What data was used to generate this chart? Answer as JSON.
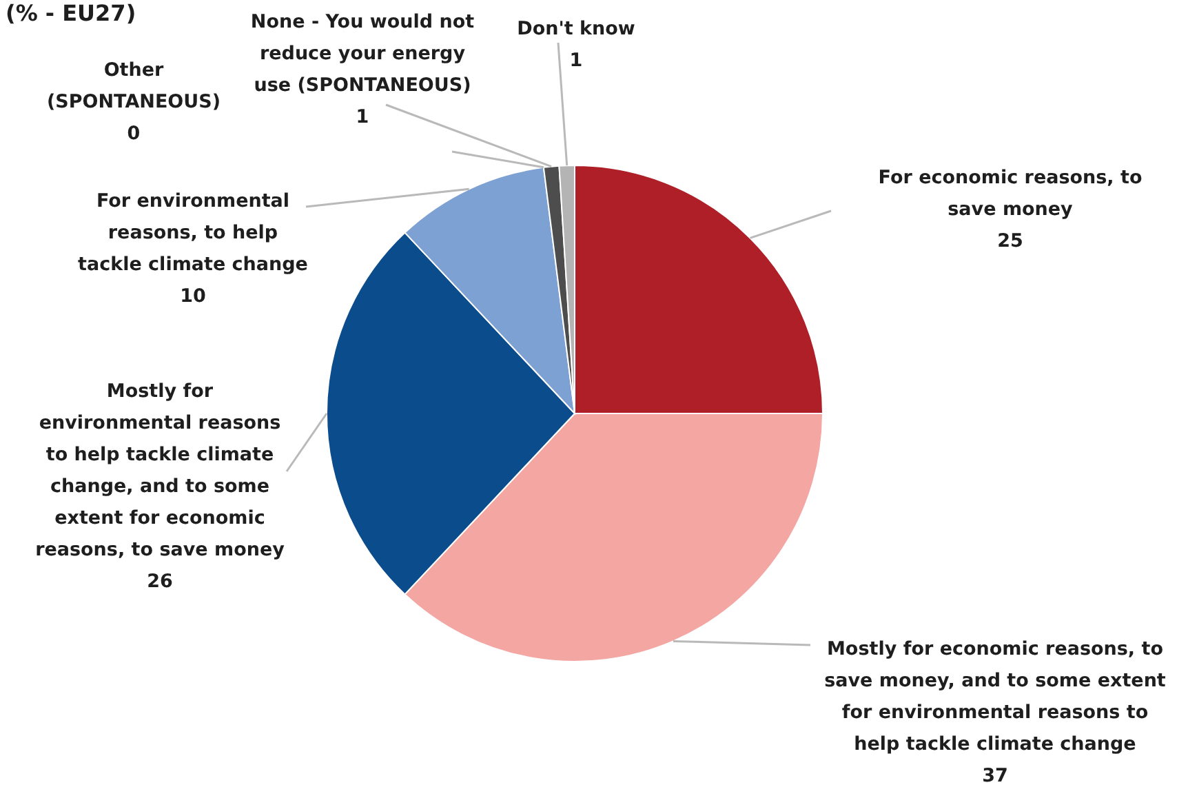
{
  "chart_data": {
    "type": "pie",
    "title": "(% - EU27)",
    "categories": [
      "For economic reasons, to save money",
      "Mostly for economic reasons, to save money, and to some extent for environmental reasons to help tackle climate change",
      "Mostly for environmental reasons to help tackle climate change, and to some extent for economic reasons, to save money",
      "For environmental reasons, to help tackle climate change",
      "Other (SPONTANEOUS)",
      "None - You would not reduce your energy use (SPONTANEOUS)",
      "Don't know"
    ],
    "values": [
      25,
      37,
      26,
      10,
      0,
      1,
      1
    ],
    "value_labels": [
      "25",
      "37",
      "26",
      "10",
      "0",
      "1",
      "1"
    ],
    "colors": [
      "#ae1f28",
      "#f4a6a3",
      "#0b4d8c",
      "#7da1d2",
      "#7f7f7f",
      "#4d4d4d",
      "#b4b4b4"
    ]
  }
}
